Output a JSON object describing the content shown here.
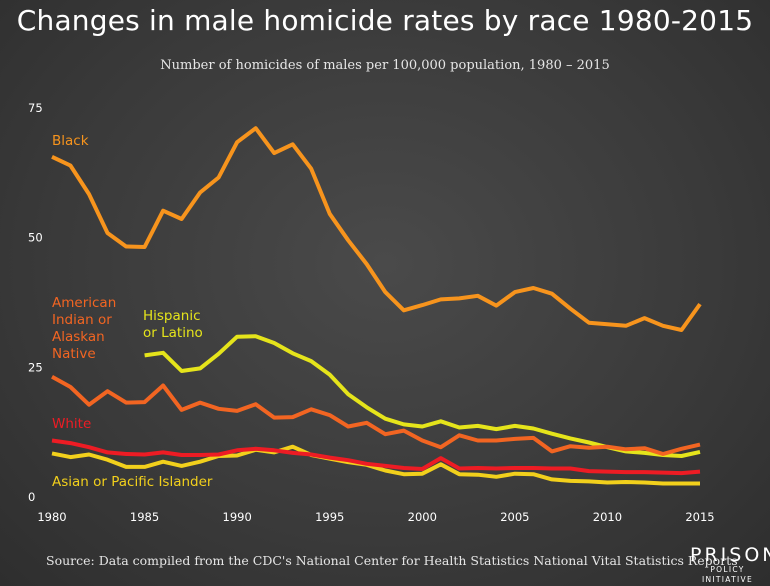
{
  "title": "Changes in male homicide rates by race 1980-2015",
  "subtitle": "Number of homicides of males per 100,000 population, 1980 – 2015",
  "source": "Source: Data compiled from the CDC's National Center for Health Statistics National Vital Statistics Reports",
  "logo": {
    "line1": "PRISON",
    "line2": "POLICY INITIATIVE"
  },
  "chart_data": {
    "type": "line",
    "xlim": [
      1980,
      2015
    ],
    "ylim": [
      0,
      75
    ],
    "x_ticks": [
      "1980",
      "1985",
      "1990",
      "1995",
      "2000",
      "2005",
      "2010",
      "2015"
    ],
    "y_ticks": [
      "0",
      "25",
      "50",
      "75"
    ],
    "grid": false,
    "series": [
      {
        "name": "Black",
        "color": "#f7941d",
        "label_color": "#f7941d",
        "label_lines": [
          "Black"
        ],
        "x": [
          1980,
          1981,
          1982,
          1983,
          1984,
          1985,
          1986,
          1987,
          1988,
          1989,
          1990,
          1991,
          1992,
          1993,
          1994,
          1995,
          1996,
          1997,
          1998,
          1999,
          2000,
          2001,
          2002,
          2003,
          2004,
          2005,
          2006,
          2007,
          2008,
          2009,
          2010,
          2011,
          2012,
          2013,
          2014,
          2015
        ],
        "y": [
          65.6,
          63.9,
          58.4,
          50.9,
          48.3,
          48.2,
          55.2,
          53.6,
          58.7,
          61.6,
          68.4,
          71.1,
          66.3,
          68.0,
          63.3,
          54.6,
          49.5,
          44.9,
          39.5,
          36.0,
          37.0,
          38.1,
          38.3,
          38.8,
          36.9,
          39.5,
          40.3,
          39.2,
          36.3,
          33.6,
          33.3,
          33.0,
          34.5,
          33.0,
          32.2,
          37.2
        ]
      },
      {
        "name": "Hispanic or Latino",
        "color": "#e5e41b",
        "label_color": "#e5e41b",
        "label_lines": [
          "Hispanic",
          "or Latino"
        ],
        "x": [
          1985,
          1986,
          1987,
          1988,
          1989,
          1990,
          1991,
          1992,
          1993,
          1994,
          1995,
          1996,
          1997,
          1998,
          1999,
          2000,
          2001,
          2002,
          2003,
          2004,
          2005,
          2006,
          2007,
          2008,
          2009,
          2010,
          2011,
          2012,
          2013,
          2014,
          2015
        ],
        "y": [
          27.3,
          27.8,
          24.3,
          24.8,
          27.6,
          30.9,
          31.0,
          29.7,
          27.7,
          26.2,
          23.6,
          19.8,
          17.3,
          15.1,
          14.0,
          13.6,
          14.6,
          13.4,
          13.7,
          13.1,
          13.7,
          13.2,
          12.2,
          11.3,
          10.5,
          9.6,
          8.8,
          8.5,
          8.1,
          7.9,
          8.7
        ]
      },
      {
        "name": "American Indian or Alaskan Native",
        "color": "#f26522",
        "label_color": "#f26522",
        "label_lines": [
          "American",
          "Indian or",
          "Alaskan",
          "Native"
        ],
        "x": [
          1980,
          1981,
          1982,
          1983,
          1984,
          1985,
          1986,
          1987,
          1988,
          1989,
          1990,
          1991,
          1992,
          1993,
          1994,
          1995,
          1996,
          1997,
          1998,
          1999,
          2000,
          2001,
          2002,
          2003,
          2004,
          2005,
          2006,
          2007,
          2008,
          2009,
          2010,
          2011,
          2012,
          2013,
          2014,
          2015
        ],
        "y": [
          23.2,
          21.2,
          17.8,
          20.4,
          18.2,
          18.3,
          21.5,
          16.8,
          18.2,
          17.0,
          16.6,
          17.9,
          15.3,
          15.4,
          16.9,
          15.8,
          13.6,
          14.3,
          12.1,
          12.8,
          10.9,
          9.6,
          11.9,
          10.9,
          10.9,
          11.2,
          11.4,
          8.8,
          9.8,
          9.5,
          9.7,
          9.2,
          9.4,
          8.3,
          9.3,
          10.1
        ]
      },
      {
        "name": "White",
        "color": "#ed1c24",
        "label_color": "#ed1c24",
        "label_lines": [
          "White"
        ],
        "x": [
          1980,
          1981,
          1982,
          1983,
          1984,
          1985,
          1986,
          1987,
          1988,
          1989,
          1990,
          1991,
          1992,
          1993,
          1994,
          1995,
          1996,
          1997,
          1998,
          1999,
          2000,
          2001,
          2002,
          2003,
          2004,
          2005,
          2006,
          2007,
          2008,
          2009,
          2010,
          2011,
          2012,
          2013,
          2014,
          2015
        ],
        "y": [
          10.9,
          10.4,
          9.6,
          8.6,
          8.3,
          8.2,
          8.6,
          8.1,
          8.1,
          8.2,
          9.0,
          9.3,
          9.0,
          8.5,
          8.2,
          7.6,
          7.1,
          6.4,
          6.0,
          5.6,
          5.4,
          7.5,
          5.5,
          5.6,
          5.5,
          5.6,
          5.6,
          5.5,
          5.5,
          5.0,
          4.9,
          4.8,
          4.8,
          4.7,
          4.6,
          4.9
        ]
      },
      {
        "name": "Asian or Pacific Islander",
        "color": "#f2d01c",
        "label_color": "#f2d01c",
        "label_lines": [
          "Asian or Pacific Islander"
        ],
        "x": [
          1980,
          1981,
          1982,
          1983,
          1984,
          1985,
          1986,
          1987,
          1988,
          1989,
          1990,
          1991,
          1992,
          1993,
          1994,
          1995,
          1996,
          1997,
          1998,
          1999,
          2000,
          2001,
          2002,
          2003,
          2004,
          2005,
          2006,
          2007,
          2008,
          2009,
          2010,
          2011,
          2012,
          2013,
          2014,
          2015
        ],
        "y": [
          8.4,
          7.7,
          8.2,
          7.2,
          5.8,
          5.8,
          6.8,
          6.0,
          6.8,
          7.9,
          8.0,
          9.1,
          8.6,
          9.7,
          8.1,
          7.4,
          6.7,
          6.2,
          5.1,
          4.4,
          4.5,
          6.3,
          4.4,
          4.3,
          3.9,
          4.5,
          4.4,
          3.4,
          3.1,
          3.0,
          2.8,
          2.9,
          2.8,
          2.6,
          2.6,
          2.6
        ]
      }
    ]
  }
}
